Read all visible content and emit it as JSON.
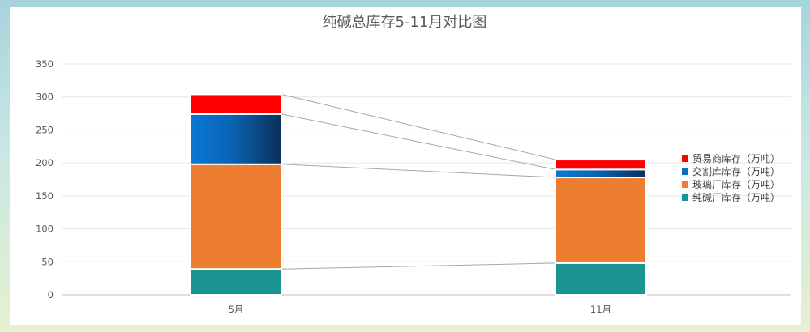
{
  "chart_data": {
    "type": "bar",
    "stacked": true,
    "title": "纯碱总库存5-11月对比图",
    "categories": [
      "5月",
      "11月"
    ],
    "ylim": [
      0,
      350
    ],
    "yticks": [
      0,
      50,
      100,
      150,
      200,
      250,
      300,
      350
    ],
    "grid": true,
    "legend_position": "right",
    "series": [
      {
        "name": "纯碱厂库存（万吨）",
        "color": "#1a9593",
        "values": [
          39,
          48
        ]
      },
      {
        "name": "玻璃厂库存（万吨）",
        "color": "#ed7d31",
        "values": [
          159,
          130
        ]
      },
      {
        "name": "交割库库存（万吨）",
        "color": "#0a6fbf",
        "values": [
          76,
          12
        ]
      },
      {
        "name": "贸易商库存（万吨）",
        "color": "#ff0000",
        "values": [
          30,
          15
        ]
      }
    ]
  }
}
